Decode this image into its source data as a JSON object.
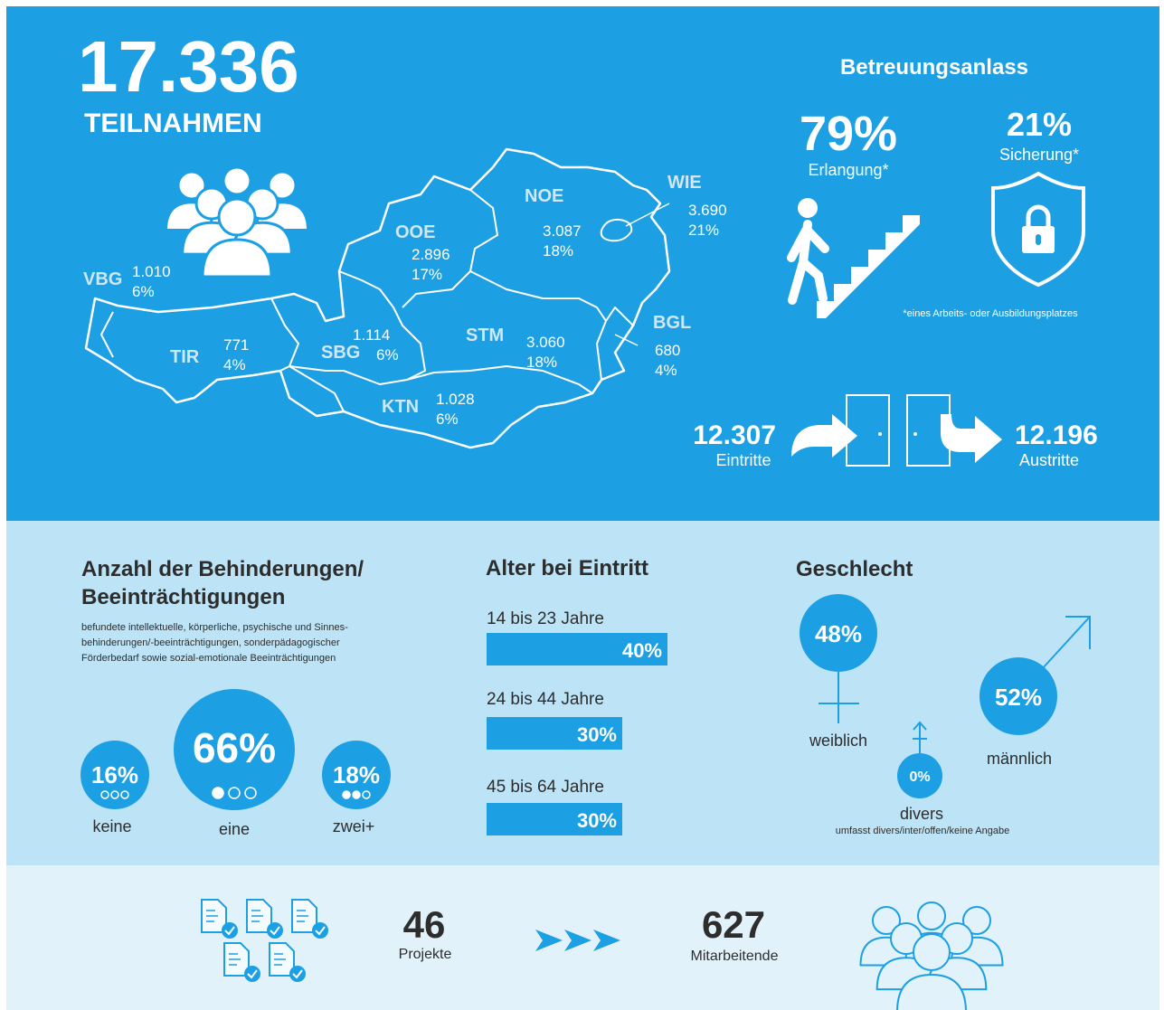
{
  "header": {
    "total": "17.336",
    "label": "TEILNAHMEN"
  },
  "regions": [
    {
      "code": "VBG",
      "count": "1.010",
      "share": "6%"
    },
    {
      "code": "TIR",
      "count": "771",
      "share": "4%"
    },
    {
      "code": "SBG",
      "count": "1.114",
      "share": "6%"
    },
    {
      "code": "OOE",
      "count": "2.896",
      "share": "17%"
    },
    {
      "code": "NOE",
      "count": "3.087",
      "share": "18%"
    },
    {
      "code": "WIE",
      "count": "3.690",
      "share": "21%"
    },
    {
      "code": "STM",
      "count": "3.060",
      "share": "18%"
    },
    {
      "code": "KTN",
      "count": "1.028",
      "share": "6%"
    },
    {
      "code": "BGL",
      "count": "680",
      "share": "4%"
    }
  ],
  "care_reason": {
    "title": "Betreuungsanlass",
    "items": [
      {
        "value": "79%",
        "label": "Erlangung*"
      },
      {
        "value": "21%",
        "label": "Sicherung*"
      }
    ],
    "footnote": "*eines Arbeits- oder Ausbildungsplatzes"
  },
  "flow": {
    "entries": {
      "value": "12.307",
      "label": "Eintritte"
    },
    "exits": {
      "value": "12.196",
      "label": "Austritte"
    }
  },
  "disabilities": {
    "title_lines": [
      "Anzahl der Behinderungen/",
      "Beeinträchtigungen"
    ],
    "description_lines": [
      "befundete intellektuelle, körperliche, psychische und Sinnes-",
      "behinderungen/-beeinträchtigungen, sonderpädagogischer",
      "Förderbedarf sowie sozial-emotionale Beeinträchtigungen"
    ],
    "items": [
      {
        "value": "16%",
        "label": "keine"
      },
      {
        "value": "66%",
        "label": "eine"
      },
      {
        "value": "18%",
        "label": "zwei+"
      }
    ]
  },
  "age": {
    "title": "Alter bei Eintritt",
    "categories": [
      "14 bis 23 Jahre",
      "24 bis 44 Jahre",
      "45 bis 64 Jahre"
    ],
    "values": [
      40,
      30,
      30
    ],
    "value_labels": [
      "40%",
      "30%",
      "30%"
    ]
  },
  "gender": {
    "title": "Geschlecht",
    "items": [
      {
        "value": "48%",
        "label": "weiblich"
      },
      {
        "value": "0%",
        "label": "divers"
      },
      {
        "value": "52%",
        "label": "männlich"
      }
    ],
    "note": "umfasst divers/inter/offen/keine Angabe"
  },
  "footer": {
    "projects": {
      "value": "46",
      "label": "Projekte"
    },
    "staff": {
      "value": "627",
      "label": "Mitarbeitende"
    }
  }
}
